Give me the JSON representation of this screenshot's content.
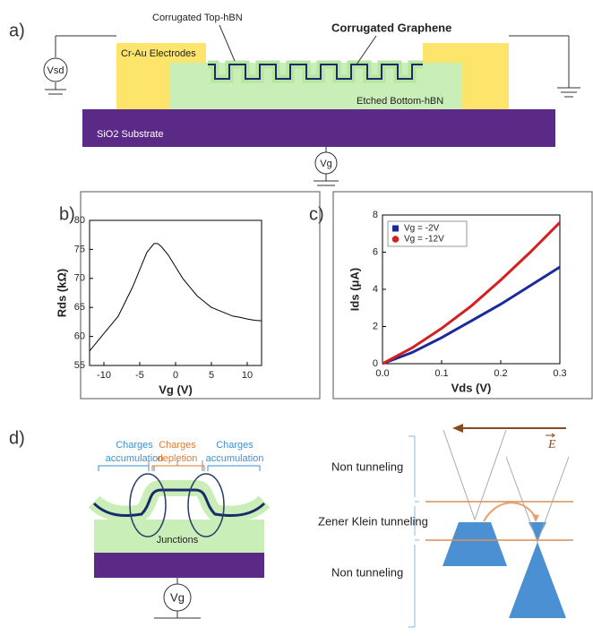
{
  "panel_labels": [
    "a)",
    "b)",
    "c)",
    "d)"
  ],
  "device": {
    "top_hbn": "Corrugated Top-hBN",
    "graphene": "Corrugated Graphene",
    "electrodes": "Cr-Au Electrodes",
    "bottom_hbn": "Etched Bottom-hBN",
    "substrate": "SiO2 Substrate",
    "source_drain": "Vsd",
    "gate": "Vg"
  },
  "chart_data": [
    {
      "type": "line",
      "xlabel": "Vg (V)",
      "ylabel": "Rds (kΩ)",
      "color": "#000000",
      "x": [
        -12,
        -11,
        -10,
        -9,
        -8,
        -7,
        -6,
        -5,
        -4,
        -3,
        -2.5,
        -2,
        -1,
        0,
        1,
        2,
        3,
        4,
        5,
        6,
        7,
        8,
        9,
        10,
        11,
        12
      ],
      "values": [
        57.5,
        59,
        60.5,
        62,
        63.5,
        66,
        68.5,
        71.5,
        74.5,
        76,
        76,
        75.5,
        74,
        72,
        70,
        68.5,
        67,
        66,
        65,
        64.5,
        64,
        63.5,
        63.3,
        63,
        62.8,
        62.7
      ],
      "xlim": [
        -12,
        12
      ],
      "xticks": [
        -10,
        -5,
        0,
        5,
        10
      ],
      "ylim": [
        55,
        80
      ],
      "yticks": [
        55,
        60,
        65,
        70,
        75,
        80
      ]
    },
    {
      "type": "line",
      "xlabel": "Vds (V)",
      "ylabel": "Ids (μA)",
      "legend": "upper left",
      "x": [
        0,
        0.05,
        0.1,
        0.15,
        0.2,
        0.25,
        0.3
      ],
      "series": [
        {
          "name": "Vg = -2V",
          "color": "#1a2a9c",
          "values": [
            0,
            0.6,
            1.4,
            2.3,
            3.2,
            4.2,
            5.2
          ]
        },
        {
          "name": "Vg = -12V",
          "color": "#d42020",
          "values": [
            0,
            0.85,
            1.9,
            3.1,
            4.5,
            6.0,
            7.6
          ]
        }
      ],
      "xlim": [
        0,
        0.3
      ],
      "xticks": [
        {
          "value": 0,
          "label": "0.0"
        },
        0.1,
        0.2,
        0.3
      ],
      "ylim": [
        0,
        8
      ],
      "yticks": [
        0,
        2,
        4,
        6,
        8
      ]
    }
  ],
  "junction": {
    "regions": [
      [
        "Charges",
        "accumulation"
      ],
      [
        "Charges",
        "depletion"
      ],
      [
        "Charges",
        "accumulation"
      ]
    ],
    "junctions": "Junctions",
    "gate": "Vg"
  },
  "band": {
    "field": "E",
    "regions": [
      "Non tunneling",
      "Zener Klein tunneling",
      "Non tunneling"
    ]
  }
}
